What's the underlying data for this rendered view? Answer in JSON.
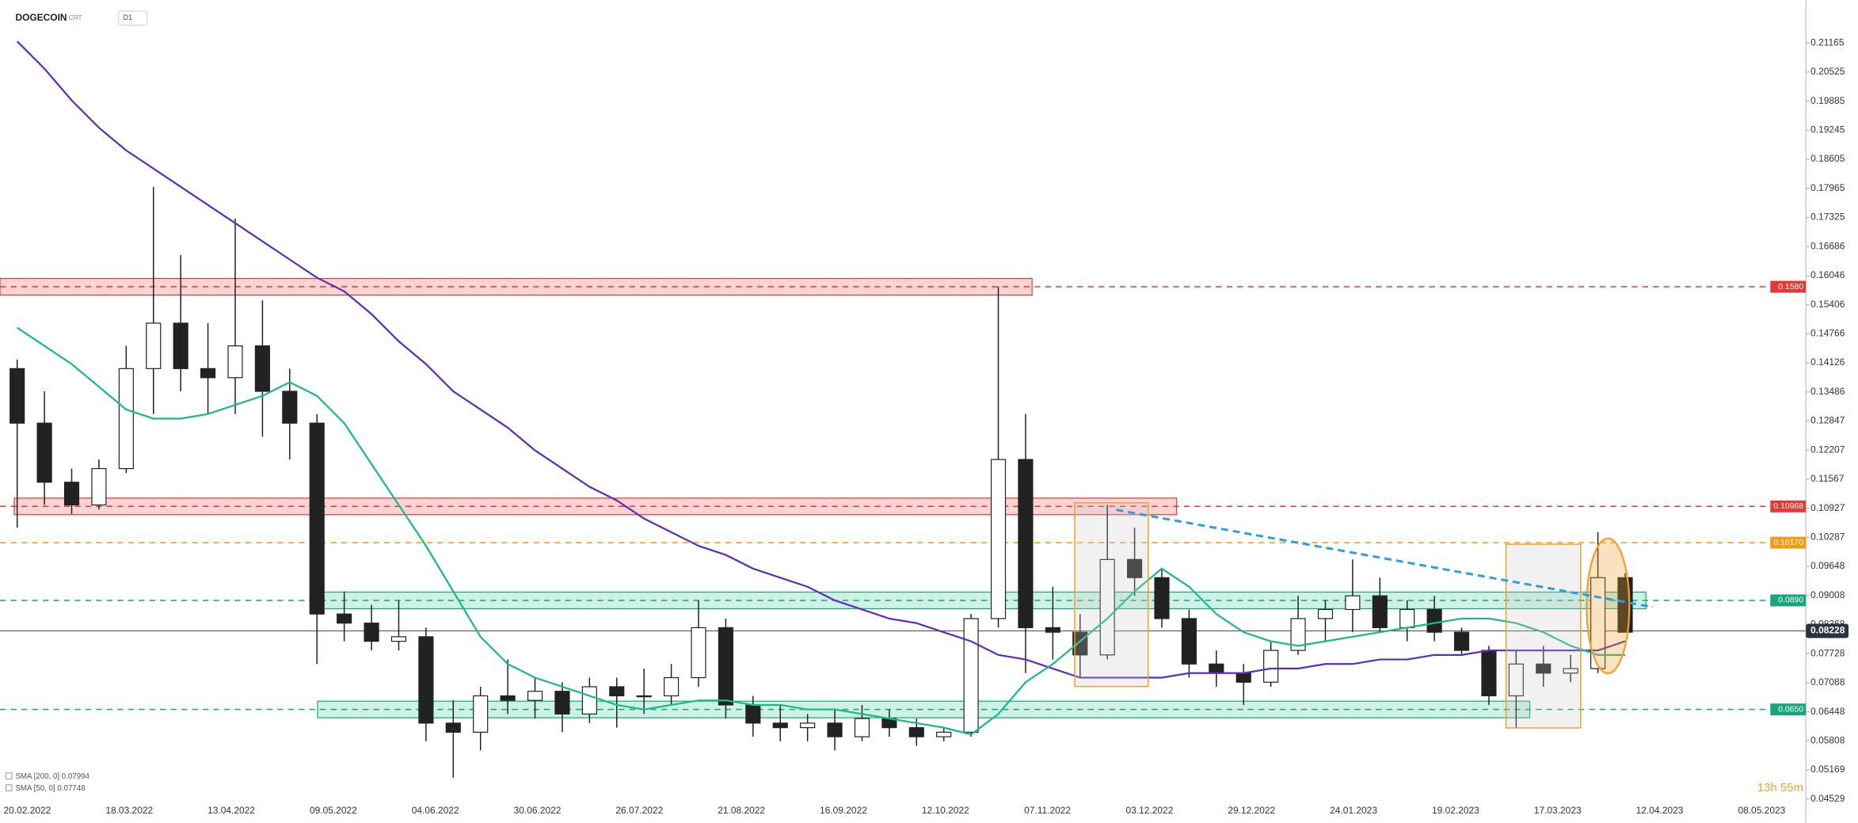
{
  "chart_data": {
    "type": "candlestick",
    "title": "DOGECOIN",
    "instrument_type": "CRT",
    "timeframe": "D1",
    "timer": "13h 55m",
    "candles": {
      "open": [
        0.14,
        0.128,
        0.115,
        0.11,
        0.118,
        0.14,
        0.15,
        0.14,
        0.138,
        0.145,
        0.135,
        0.128,
        0.086,
        0.084,
        0.08,
        0.081,
        0.062,
        0.06,
        0.068,
        0.067,
        0.069,
        0.064,
        0.07,
        0.068,
        0.068,
        0.072,
        0.083,
        0.066,
        0.062,
        0.061,
        0.062,
        0.059,
        0.063,
        0.061,
        0.059,
        0.06,
        0.085,
        0.12,
        0.083,
        0.082,
        0.077,
        0.098,
        0.094,
        0.085,
        0.075,
        0.073,
        0.071,
        0.078,
        0.085,
        0.087,
        0.09,
        0.083,
        0.087,
        0.082,
        0.078,
        0.068,
        0.075,
        0.073,
        0.074,
        0.094
      ],
      "high": [
        0.142,
        0.135,
        0.118,
        0.12,
        0.145,
        0.18,
        0.165,
        0.15,
        0.173,
        0.155,
        0.14,
        0.13,
        0.091,
        0.088,
        0.089,
        0.083,
        0.067,
        0.07,
        0.076,
        0.072,
        0.071,
        0.072,
        0.072,
        0.074,
        0.075,
        0.089,
        0.085,
        0.068,
        0.066,
        0.064,
        0.065,
        0.066,
        0.065,
        0.063,
        0.061,
        0.086,
        0.158,
        0.13,
        0.092,
        0.086,
        0.11,
        0.105,
        0.096,
        0.087,
        0.078,
        0.075,
        0.08,
        0.09,
        0.089,
        0.098,
        0.094,
        0.089,
        0.09,
        0.083,
        0.079,
        0.078,
        0.079,
        0.077,
        0.104,
        0.095
      ],
      "low": [
        0.105,
        0.11,
        0.108,
        0.109,
        0.117,
        0.13,
        0.135,
        0.13,
        0.13,
        0.125,
        0.12,
        0.075,
        0.08,
        0.078,
        0.078,
        0.058,
        0.05,
        0.056,
        0.064,
        0.063,
        0.06,
        0.062,
        0.061,
        0.064,
        0.066,
        0.07,
        0.063,
        0.059,
        0.058,
        0.058,
        0.056,
        0.058,
        0.059,
        0.057,
        0.058,
        0.059,
        0.083,
        0.073,
        0.076,
        0.072,
        0.076,
        0.09,
        0.083,
        0.072,
        0.07,
        0.066,
        0.07,
        0.077,
        0.08,
        0.082,
        0.082,
        0.08,
        0.08,
        0.077,
        0.066,
        0.061,
        0.07,
        0.071,
        0.073,
        0.082
      ],
      "close": [
        0.128,
        0.115,
        0.11,
        0.118,
        0.14,
        0.15,
        0.14,
        0.138,
        0.145,
        0.135,
        0.128,
        0.086,
        0.084,
        0.08,
        0.081,
        0.062,
        0.06,
        0.068,
        0.067,
        0.069,
        0.064,
        0.07,
        0.068,
        0.068,
        0.072,
        0.083,
        0.066,
        0.062,
        0.061,
        0.062,
        0.059,
        0.063,
        0.061,
        0.059,
        0.06,
        0.085,
        0.12,
        0.083,
        0.082,
        0.077,
        0.098,
        0.094,
        0.085,
        0.075,
        0.073,
        0.071,
        0.078,
        0.085,
        0.087,
        0.09,
        0.083,
        0.087,
        0.082,
        0.078,
        0.068,
        0.075,
        0.073,
        0.074,
        0.094,
        0.082
      ]
    },
    "series": [
      {
        "name": "SMA [200, 0] 0.07994",
        "color": "#5b2fb8",
        "values": [
          0.212,
          0.206,
          0.199,
          0.193,
          0.188,
          0.184,
          0.18,
          0.176,
          0.172,
          0.168,
          0.164,
          0.16,
          0.157,
          0.152,
          0.146,
          0.141,
          0.135,
          0.131,
          0.127,
          0.122,
          0.118,
          0.114,
          0.111,
          0.107,
          0.104,
          0.101,
          0.099,
          0.096,
          0.094,
          0.092,
          0.089,
          0.087,
          0.085,
          0.084,
          0.082,
          0.08,
          0.077,
          0.076,
          0.074,
          0.072,
          0.072,
          0.072,
          0.072,
          0.073,
          0.073,
          0.073,
          0.074,
          0.074,
          0.075,
          0.075,
          0.076,
          0.076,
          0.077,
          0.077,
          0.078,
          0.078,
          0.078,
          0.078,
          0.078,
          0.08
        ]
      },
      {
        "name": "SMA [50, 0] 0.07748",
        "color": "#1cb98a",
        "values": [
          0.149,
          0.145,
          0.141,
          0.136,
          0.131,
          0.129,
          0.129,
          0.13,
          0.132,
          0.134,
          0.137,
          0.134,
          0.128,
          0.119,
          0.11,
          0.101,
          0.091,
          0.081,
          0.075,
          0.072,
          0.07,
          0.068,
          0.066,
          0.065,
          0.066,
          0.067,
          0.067,
          0.066,
          0.066,
          0.065,
          0.065,
          0.064,
          0.063,
          0.062,
          0.061,
          0.0595,
          0.064,
          0.071,
          0.075,
          0.08,
          0.085,
          0.091,
          0.096,
          0.092,
          0.086,
          0.082,
          0.08,
          0.079,
          0.08,
          0.081,
          0.082,
          0.083,
          0.084,
          0.085,
          0.085,
          0.084,
          0.082,
          0.079,
          0.077,
          0.077
        ]
      }
    ],
    "ylim": [
      0.04373,
      0.22104
    ],
    "yticks": [
      0.21165,
      0.20525,
      0.19885,
      0.19245,
      0.18605,
      0.17965,
      0.17325,
      0.16686,
      0.16046,
      0.15406,
      0.14766,
      0.14126,
      0.13486,
      0.12847,
      0.12207,
      0.11567,
      0.10927,
      0.10287,
      0.09648,
      0.09008,
      0.08368,
      0.07728,
      0.07088,
      0.06448,
      0.05808,
      0.05169,
      0.04529
    ],
    "date_labels": [
      "20.02.2022",
      "18.03.2022",
      "13.04.2022",
      "09.05.2022",
      "04.06.2022",
      "30.06.2022",
      "26.07.2022",
      "21.08.2022",
      "16.09.2022",
      "12.10.2022",
      "07.11.2022",
      "03.12.2022",
      "29.12.2022",
      "24.01.2023",
      "19.02.2023",
      "17.03.2023",
      "12.04.2023",
      "08.05.2023"
    ],
    "levels": [
      {
        "value": 0.158,
        "label": "0.1580",
        "color": "#e53935",
        "zone": "red"
      },
      {
        "value": 0.10968,
        "label": "0.10968",
        "color": "#e53935",
        "zone": "red"
      },
      {
        "value": 0.1017,
        "label": "0.10170",
        "color": "#f39c12"
      },
      {
        "value": 0.089,
        "label": "0.0890",
        "color": "#16a67a",
        "zone": "green"
      },
      {
        "value": 0.065,
        "label": "0.0650",
        "color": "#16a67a",
        "zone": "green"
      }
    ],
    "last_price": {
      "value": 0.08228,
      "label": "0.08228"
    }
  }
}
